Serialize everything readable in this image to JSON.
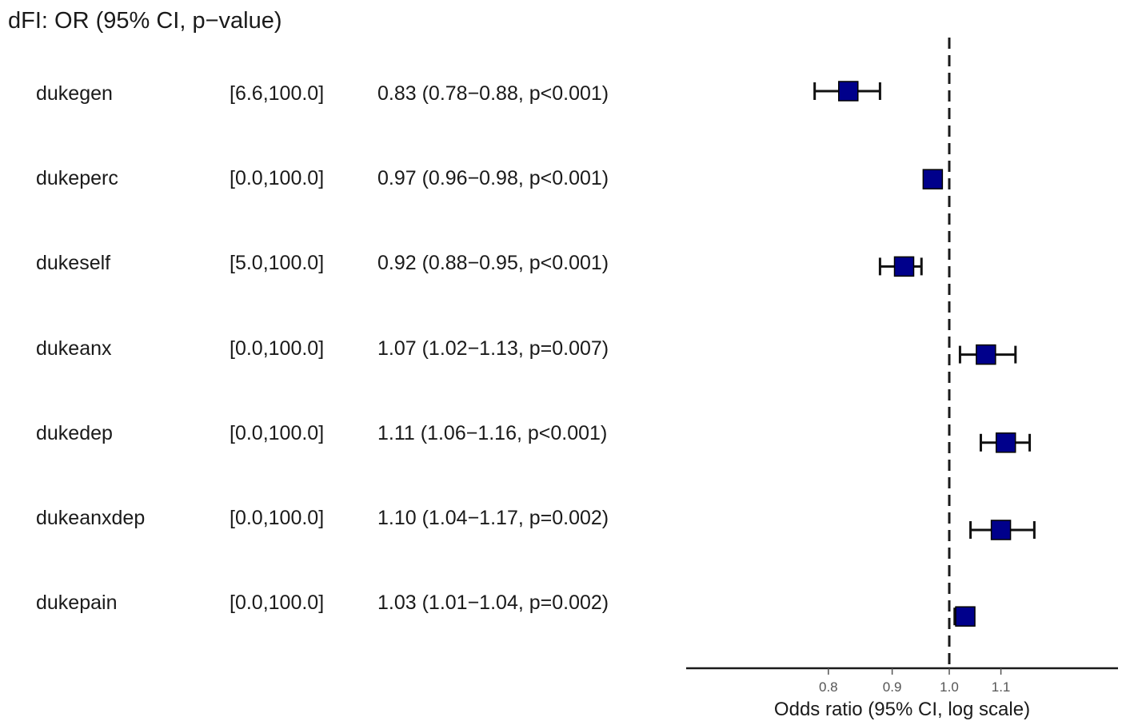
{
  "chart_data": {
    "type": "forest",
    "title": "dFI: OR (95% CI, p−value)",
    "xlabel": "Odds ratio (95% CI, log scale)",
    "x_scale": "log",
    "xlim": [
      0.76,
      1.16
    ],
    "reference_line": 1.0,
    "xticks": [
      0.8,
      0.9,
      1.0,
      1.1
    ],
    "xtick_labels": [
      "0.8",
      "0.9",
      "1.0",
      "1.1"
    ],
    "marker_color": "#00008b",
    "rows": [
      {
        "label": "dukegen",
        "range": "[6.6,100.0]",
        "text": "0.83 (0.78−0.88, p<0.001)",
        "or": 0.83,
        "lo": 0.78,
        "hi": 0.88
      },
      {
        "label": "dukeperc",
        "range": "[0.0,100.0]",
        "text": "0.97 (0.96−0.98, p<0.001)",
        "or": 0.97,
        "lo": 0.96,
        "hi": 0.98
      },
      {
        "label": "dukeself",
        "range": "[5.0,100.0]",
        "text": "0.92 (0.88−0.95, p<0.001)",
        "or": 0.92,
        "lo": 0.88,
        "hi": 0.95
      },
      {
        "label": "dukeanx",
        "range": "[0.0,100.0]",
        "text": "1.07 (1.02−1.13, p=0.007)",
        "or": 1.07,
        "lo": 1.02,
        "hi": 1.13
      },
      {
        "label": "dukedep",
        "range": "[0.0,100.0]",
        "text": "1.11 (1.06−1.16, p<0.001)",
        "or": 1.11,
        "lo": 1.06,
        "hi": 1.16
      },
      {
        "label": "dukeanxdep",
        "range": "[0.0,100.0]",
        "text": "1.10 (1.04−1.17, p=0.002)",
        "or": 1.1,
        "lo": 1.04,
        "hi": 1.17
      },
      {
        "label": "dukepain",
        "range": "[0.0,100.0]",
        "text": "1.03 (1.01−1.04, p=0.002)",
        "or": 1.03,
        "lo": 1.01,
        "hi": 1.04
      }
    ]
  }
}
